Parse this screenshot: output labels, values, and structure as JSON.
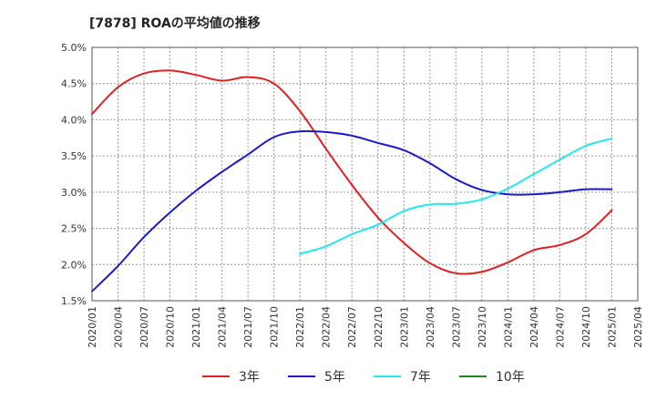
{
  "chart_data": {
    "type": "line",
    "title": "[7878]  ROAの平均値の推移",
    "xlabel": "",
    "ylabel": "",
    "ylim": [
      1.5,
      5.0
    ],
    "y_ticks": [
      1.5,
      2.0,
      2.5,
      3.0,
      3.5,
      4.0,
      4.5,
      5.0
    ],
    "y_tick_labels": [
      "1.5%",
      "2.0%",
      "2.5%",
      "3.0%",
      "3.5%",
      "4.0%",
      "4.5%",
      "5.0%"
    ],
    "x_tick_labels": [
      "2020/01",
      "2020/04",
      "2020/07",
      "2020/10",
      "2021/01",
      "2021/04",
      "2021/07",
      "2021/10",
      "2022/01",
      "2022/04",
      "2022/07",
      "2022/10",
      "2023/01",
      "2023/04",
      "2023/07",
      "2023/10",
      "2024/01",
      "2024/04",
      "2024/07",
      "2024/10",
      "2025/01",
      "2025/04"
    ],
    "grid": true,
    "legend_position": "bottom",
    "series": [
      {
        "name": "3年",
        "color": "#e02020",
        "x": [
          "2020/01",
          "2020/04",
          "2020/07",
          "2020/10",
          "2021/01",
          "2021/04",
          "2021/07",
          "2021/10",
          "2022/01",
          "2022/04",
          "2022/07",
          "2022/10",
          "2023/01",
          "2023/04",
          "2023/07",
          "2023/10",
          "2024/01",
          "2024/04",
          "2024/07",
          "2024/10",
          "2025/01"
        ],
        "values": [
          4.08,
          4.45,
          4.64,
          4.68,
          4.62,
          4.54,
          4.59,
          4.5,
          4.12,
          3.6,
          3.1,
          2.65,
          2.3,
          2.02,
          1.88,
          1.9,
          2.03,
          2.2,
          2.27,
          2.42,
          2.75
        ]
      },
      {
        "name": "5年",
        "color": "#1a1acc",
        "x": [
          "2020/01",
          "2020/04",
          "2020/07",
          "2020/10",
          "2021/01",
          "2021/04",
          "2021/07",
          "2021/10",
          "2022/01",
          "2022/04",
          "2022/07",
          "2022/10",
          "2023/01",
          "2023/04",
          "2023/07",
          "2023/10",
          "2024/01",
          "2024/04",
          "2024/07",
          "2024/10",
          "2025/01"
        ],
        "values": [
          1.63,
          1.98,
          2.38,
          2.72,
          3.02,
          3.28,
          3.52,
          3.76,
          3.84,
          3.83,
          3.78,
          3.68,
          3.58,
          3.4,
          3.18,
          3.03,
          2.97,
          2.97,
          3.0,
          3.04,
          3.04
        ]
      },
      {
        "name": "7年",
        "color": "#22e8f0",
        "x": [
          "2022/01",
          "2022/04",
          "2022/07",
          "2022/10",
          "2023/01",
          "2023/04",
          "2023/07",
          "2023/10",
          "2024/01",
          "2024/04",
          "2024/07",
          "2024/10",
          "2025/01"
        ],
        "values": [
          2.15,
          2.25,
          2.42,
          2.55,
          2.74,
          2.83,
          2.84,
          2.9,
          3.05,
          3.25,
          3.45,
          3.64,
          3.74
        ]
      },
      {
        "name": "10年",
        "color": "#1a8a1a",
        "x": [],
        "values": []
      }
    ]
  }
}
